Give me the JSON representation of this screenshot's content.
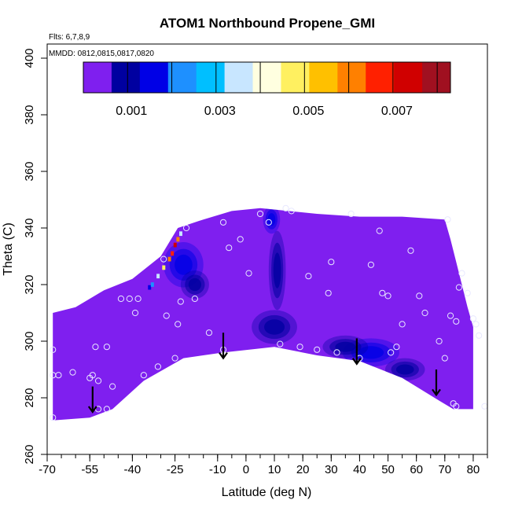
{
  "chart_data": {
    "type": "heatmap",
    "title": "ATOM1 Northbound Propene_GMI",
    "flights_note": "Flts: 6,7,8,9",
    "dates_note": "MMDD: 0812,0815,0817,0820",
    "xlabel": "Latitude (deg N)",
    "ylabel": "Theta (C)",
    "xlim": [
      -70,
      85
    ],
    "ylim": [
      260,
      405
    ],
    "x_ticks": [
      -70,
      -55,
      -40,
      -25,
      -10,
      0,
      10,
      20,
      30,
      40,
      50,
      60,
      70,
      80
    ],
    "x_tick_labels": [
      "-70",
      "-55",
      "-40",
      "-25",
      "-10",
      "0",
      "10",
      "20",
      "30",
      "40",
      "50",
      "60",
      "70",
      "80"
    ],
    "x_minor_step": 5,
    "y_ticks": [
      260,
      280,
      300,
      320,
      340,
      360,
      380,
      400
    ],
    "y_tick_labels": [
      "260",
      "280",
      "300",
      "320",
      "340",
      "360",
      "380",
      "400"
    ],
    "colorbar": {
      "min": 0,
      "max": 0.0083,
      "tick_values": [
        0.001,
        0.003,
        0.005,
        0.007
      ],
      "tick_labels": [
        "0.001",
        "0.003",
        "0.005",
        "0.007"
      ],
      "divisions": [
        0.001,
        0.002,
        0.003,
        0.004,
        0.005,
        0.006,
        0.007,
        0.008
      ],
      "colors": [
        "#7f1fef",
        "#0000a0",
        "#0000e6",
        "#1e90ff",
        "#00bfff",
        "#c8e6ff",
        "#ffffe0",
        "#fff060",
        "#ffc000",
        "#ff8000",
        "#ff2000",
        "#d00000",
        "#a01020"
      ]
    },
    "background_color": "#7f1fef",
    "domain_top": [
      [
        -68,
        310
      ],
      [
        -60,
        312
      ],
      [
        -50,
        318
      ],
      [
        -40,
        322
      ],
      [
        -30,
        330
      ],
      [
        -24,
        340
      ],
      [
        -15,
        343
      ],
      [
        -5,
        346
      ],
      [
        5,
        347
      ],
      [
        15,
        346
      ],
      [
        25,
        345
      ],
      [
        40,
        344
      ],
      [
        55,
        344
      ],
      [
        70,
        343
      ],
      [
        72,
        336
      ],
      [
        74,
        328
      ],
      [
        76,
        320
      ],
      [
        78,
        312
      ],
      [
        80,
        305
      ]
    ],
    "domain_bottom": [
      [
        -68,
        272
      ],
      [
        -55,
        273
      ],
      [
        -47,
        276
      ],
      [
        -36,
        286
      ],
      [
        -22,
        294
      ],
      [
        -8,
        296
      ],
      [
        10,
        298
      ],
      [
        25,
        295
      ],
      [
        40,
        293
      ],
      [
        55,
        287
      ],
      [
        68,
        279
      ],
      [
        73,
        276
      ],
      [
        80,
        276
      ]
    ],
    "features": [
      {
        "lat": -22,
        "theta": 327,
        "rlat": 7,
        "rtheta": 8,
        "value": 0.0015
      },
      {
        "lat": -18,
        "theta": 320,
        "rlat": 5,
        "rtheta": 5,
        "value": 0.0012
      },
      {
        "lat": 9,
        "theta": 343,
        "rlat": 3,
        "rtheta": 5,
        "value": 0.0018
      },
      {
        "lat": 11,
        "theta": 325,
        "rlat": 3,
        "rtheta": 14,
        "value": 0.0008
      },
      {
        "lat": 10,
        "theta": 305,
        "rlat": 8,
        "rtheta": 6,
        "value": 0.0009
      },
      {
        "lat": 44,
        "theta": 296,
        "rlat": 10,
        "rtheta": 5,
        "value": 0.0013
      },
      {
        "lat": 56,
        "theta": 290,
        "rlat": 7,
        "rtheta": 4,
        "value": 0.0009
      },
      {
        "lat": 35,
        "theta": 298,
        "rlat": 8,
        "rtheta": 4,
        "value": 0.0008
      }
    ],
    "hot_band": [
      {
        "lat": -34,
        "theta": 319,
        "value": 0.0015
      },
      {
        "lat": -33,
        "theta": 320,
        "value": 0.0022
      },
      {
        "lat": -31,
        "theta": 323,
        "value": 0.0032
      },
      {
        "lat": -29,
        "theta": 326,
        "value": 0.0045
      },
      {
        "lat": -27,
        "theta": 329,
        "value": 0.0058
      },
      {
        "lat": -26,
        "theta": 331,
        "value": 0.0068
      },
      {
        "lat": -25,
        "theta": 334,
        "value": 0.0072
      },
      {
        "lat": -24,
        "theta": 336,
        "value": 0.0062
      },
      {
        "lat": -23,
        "theta": 338,
        "value": 0.0032
      }
    ],
    "arrows": [
      {
        "lat": -54,
        "theta_from": 284,
        "theta_to": 275
      },
      {
        "lat": -8,
        "theta_from": 303,
        "theta_to": 294
      },
      {
        "lat": 39,
        "theta_from": 301,
        "theta_to": 292
      },
      {
        "lat": 67,
        "theta_from": 290,
        "theta_to": 281
      }
    ],
    "points": [
      [
        -68,
        297
      ],
      [
        -68,
        288
      ],
      [
        -68,
        273
      ],
      [
        -61,
        289
      ],
      [
        -55,
        287
      ],
      [
        -53,
        298
      ],
      [
        -52,
        286
      ],
      [
        -52,
        276
      ],
      [
        -49,
        298
      ],
      [
        -49,
        276
      ],
      [
        -47,
        284
      ],
      [
        -44,
        315
      ],
      [
        -41,
        315
      ],
      [
        -39,
        310
      ],
      [
        -38,
        315
      ],
      [
        -36,
        288
      ],
      [
        -31,
        291
      ],
      [
        -28,
        309
      ],
      [
        -25,
        294
      ],
      [
        -23,
        314
      ],
      [
        -21,
        340
      ],
      [
        -18,
        315
      ],
      [
        -13,
        303
      ],
      [
        -8,
        342
      ],
      [
        -6,
        333
      ],
      [
        -2,
        336
      ],
      [
        1,
        324
      ],
      [
        5,
        345
      ],
      [
        8,
        342
      ],
      [
        12,
        299
      ],
      [
        14,
        347
      ],
      [
        16,
        346
      ],
      [
        19,
        298
      ],
      [
        22,
        323
      ],
      [
        25,
        297
      ],
      [
        29,
        317
      ],
      [
        32,
        296
      ],
      [
        37,
        345
      ],
      [
        40,
        294
      ],
      [
        44,
        327
      ],
      [
        47,
        339
      ],
      [
        48,
        317
      ],
      [
        50,
        316
      ],
      [
        53,
        298
      ],
      [
        55,
        306
      ],
      [
        58,
        332
      ],
      [
        61,
        316
      ],
      [
        63,
        310
      ],
      [
        68,
        300
      ],
      [
        70,
        294
      ],
      [
        71,
        343
      ],
      [
        72,
        309
      ],
      [
        74,
        307
      ],
      [
        75,
        319
      ],
      [
        76,
        324
      ],
      [
        78,
        317
      ],
      [
        80,
        308
      ],
      [
        81,
        306
      ],
      [
        82,
        302
      ],
      [
        84,
        277
      ],
      [
        73,
        278
      ],
      [
        74,
        277
      ],
      [
        -54,
        288
      ],
      [
        -66,
        288
      ],
      [
        -24,
        306
      ],
      [
        30,
        328
      ],
      [
        -8,
        297
      ],
      [
        51,
        296
      ],
      [
        -29,
        329
      ]
    ]
  }
}
